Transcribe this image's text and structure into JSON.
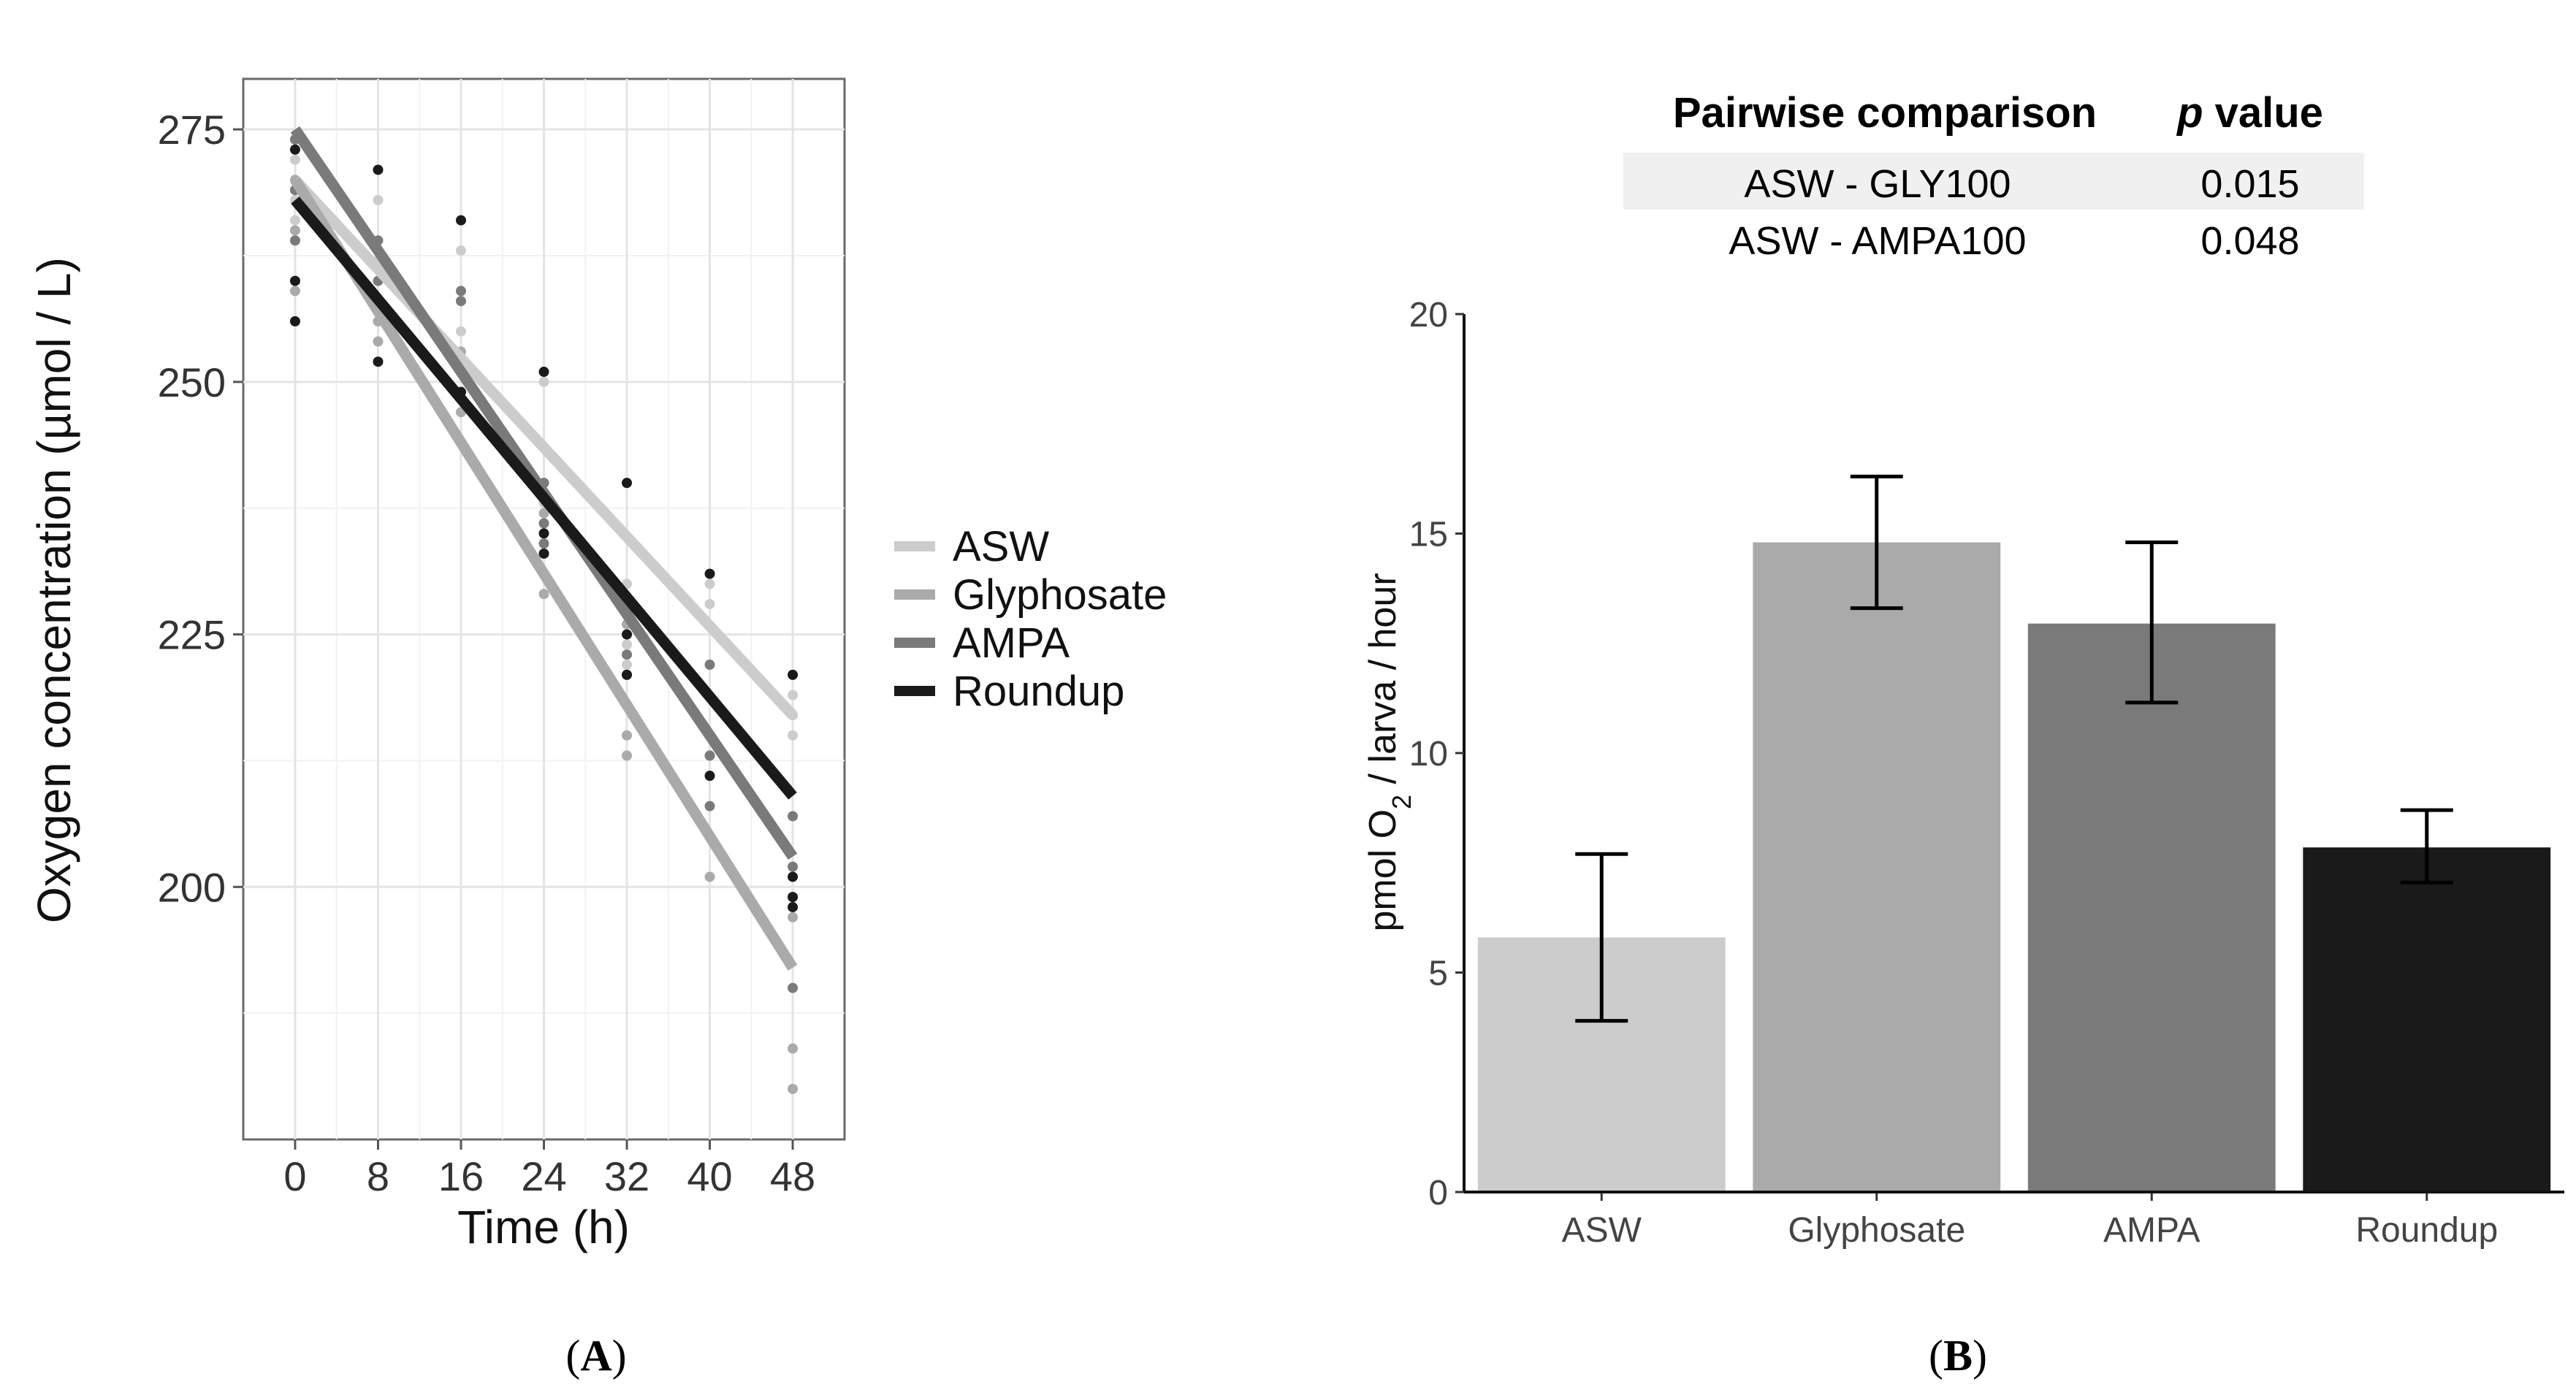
{
  "chart_data": [
    {
      "type": "scatter",
      "panel_label": "(A)",
      "panel_letter": "A",
      "xlabel": "Time (h)",
      "ylabel": "Oxygen concentration (µmol / L)",
      "xlim": [
        -5,
        53
      ],
      "ylim": [
        175,
        280
      ],
      "x_ticks": [
        0,
        8,
        16,
        24,
        32,
        40,
        48
      ],
      "y_ticks": [
        200,
        225,
        250,
        275
      ],
      "x_tick_labels": [
        "0",
        "8",
        "16",
        "24",
        "32",
        "40",
        "48"
      ],
      "y_tick_labels": [
        "200",
        "225",
        "250",
        "275"
      ],
      "grid": true,
      "legend_position": "right",
      "series": [
        {
          "name": "ASW",
          "color": "#cccccc",
          "fit": {
            "x": [
              0,
              48
            ],
            "y": [
              270,
              217
            ]
          },
          "points": [
            [
              0,
              272
            ],
            [
              0,
              268
            ],
            [
              0,
              266
            ],
            [
              8,
              268
            ],
            [
              8,
              262
            ],
            [
              8,
              258
            ],
            [
              16,
              263
            ],
            [
              16,
              255
            ],
            [
              16,
              252
            ],
            [
              24,
              250
            ],
            [
              24,
              240
            ],
            [
              24,
              238
            ],
            [
              32,
              230
            ],
            [
              32,
              224
            ],
            [
              32,
              222
            ],
            [
              40,
              230
            ],
            [
              40,
              228
            ],
            [
              40,
              215
            ],
            [
              48,
              219
            ],
            [
              48,
              217
            ],
            [
              48,
              215
            ]
          ]
        },
        {
          "name": "Glyphosate",
          "color": "#aaaaaa",
          "fit": {
            "x": [
              0,
              48
            ],
            "y": [
              270,
              192
            ]
          },
          "points": [
            [
              0,
              270
            ],
            [
              0,
              265
            ],
            [
              0,
              259
            ],
            [
              8,
              263
            ],
            [
              8,
              256
            ],
            [
              8,
              254
            ],
            [
              16,
              253
            ],
            [
              16,
              249
            ],
            [
              16,
              247
            ],
            [
              24,
              237
            ],
            [
              24,
              233
            ],
            [
              24,
              229
            ],
            [
              32,
              226
            ],
            [
              32,
              215
            ],
            [
              32,
              213
            ],
            [
              40,
              213
            ],
            [
              40,
              205
            ],
            [
              40,
              201
            ],
            [
              48,
              197
            ],
            [
              48,
              184
            ],
            [
              48,
              180
            ]
          ]
        },
        {
          "name": "AMPA",
          "color": "#7a7a7a",
          "fit": {
            "x": [
              0,
              48
            ],
            "y": [
              275,
              203
            ]
          },
          "points": [
            [
              0,
              274
            ],
            [
              0,
              269
            ],
            [
              0,
              264
            ],
            [
              8,
              264
            ],
            [
              8,
              260
            ],
            [
              8,
              258
            ],
            [
              16,
              259
            ],
            [
              16,
              258
            ],
            [
              16,
              252
            ],
            [
              24,
              240
            ],
            [
              24,
              236
            ],
            [
              24,
              234
            ],
            [
              32,
              228
            ],
            [
              32,
              223
            ],
            [
              32,
              221
            ],
            [
              40,
              222
            ],
            [
              40,
              213
            ],
            [
              40,
              208
            ],
            [
              48,
              207
            ],
            [
              48,
              202
            ],
            [
              48,
              190
            ]
          ]
        },
        {
          "name": "Roundup",
          "color": "#1a1a1a",
          "fit": {
            "x": [
              0,
              48
            ],
            "y": [
              268,
              209
            ]
          },
          "points": [
            [
              0,
              273
            ],
            [
              0,
              260
            ],
            [
              0,
              256
            ],
            [
              8,
              271
            ],
            [
              8,
              252
            ],
            [
              16,
              266
            ],
            [
              16,
              249
            ],
            [
              24,
              251
            ],
            [
              24,
              235
            ],
            [
              24,
              233
            ],
            [
              32,
              240
            ],
            [
              32,
              225
            ],
            [
              32,
              221
            ],
            [
              40,
              231
            ],
            [
              40,
              211
            ],
            [
              48,
              221
            ],
            [
              48,
              201
            ],
            [
              48,
              199
            ],
            [
              48,
              198
            ]
          ]
        }
      ]
    },
    {
      "type": "bar",
      "panel_label": "(B)",
      "panel_letter": "B",
      "xlabel": "",
      "ylabel": "pmol O₂ / larva / hour",
      "ylim": [
        0,
        20
      ],
      "y_ticks": [
        0,
        5,
        10,
        15,
        20
      ],
      "y_tick_labels": [
        "0",
        "5",
        "10",
        "15",
        "20"
      ],
      "categories": [
        "ASW",
        "Glyphosate",
        "AMPA",
        "Roundup"
      ],
      "values": [
        5.8,
        14.8,
        12.95,
        7.85
      ],
      "error_low": [
        3.9,
        13.3,
        11.15,
        7.05
      ],
      "error_high": [
        7.7,
        16.3,
        14.8,
        8.7
      ],
      "colors": [
        "#cccccc",
        "#aaaaaa",
        "#7a7a7a",
        "#1a1a1a"
      ],
      "table": {
        "header": [
          "Pairwise comparison",
          "p",
          " value"
        ],
        "rows": [
          [
            "ASW - GLY100",
            "0.015"
          ],
          [
            "ASW - AMPA100",
            "0.048"
          ]
        ]
      }
    }
  ]
}
